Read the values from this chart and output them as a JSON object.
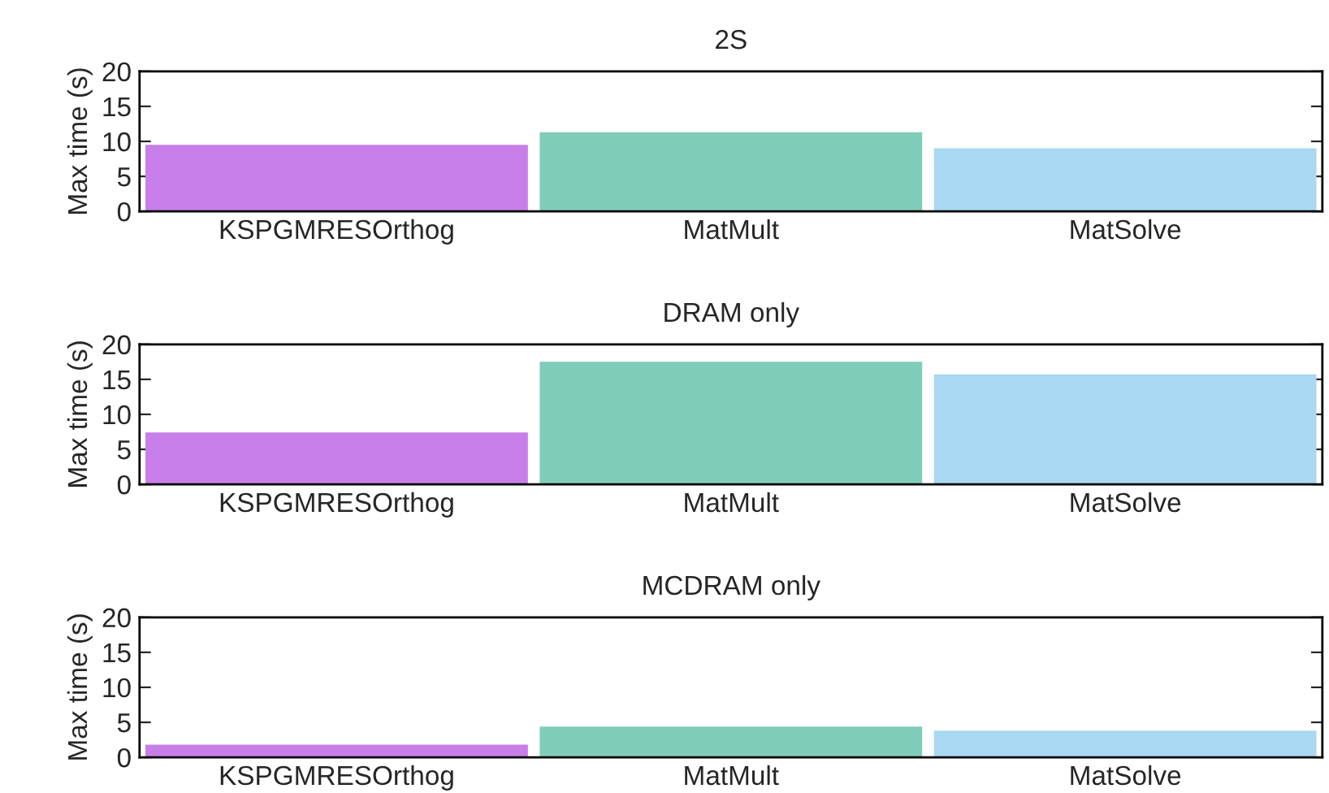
{
  "chart_data": [
    {
      "type": "bar",
      "title": "2S",
      "ylabel": "Max time (s)",
      "categories": [
        "KSPGMRESOrthog",
        "MatMult",
        "MatSolve"
      ],
      "values": [
        9.5,
        11.3,
        9.0
      ],
      "colors": [
        "#c77ee8",
        "#7fcdb9",
        "#a8d8f2"
      ],
      "ylim": [
        0,
        20
      ],
      "yticks": [
        0,
        5,
        10,
        15,
        20
      ],
      "grid": false
    },
    {
      "type": "bar",
      "title": "DRAM only",
      "ylabel": "Max time (s)",
      "categories": [
        "KSPGMRESOrthog",
        "MatMult",
        "MatSolve"
      ],
      "values": [
        7.4,
        17.5,
        15.7
      ],
      "colors": [
        "#c77ee8",
        "#7fcdb9",
        "#a8d8f2"
      ],
      "ylim": [
        0,
        20
      ],
      "yticks": [
        0,
        5,
        10,
        15,
        20
      ],
      "grid": false
    },
    {
      "type": "bar",
      "title": "MCDRAM only",
      "ylabel": "Max time (s)",
      "categories": [
        "KSPGMRESOrthog",
        "MatMult",
        "MatSolve"
      ],
      "values": [
        1.8,
        4.4,
        3.8
      ],
      "colors": [
        "#c77ee8",
        "#7fcdb9",
        "#a8d8f2"
      ],
      "ylim": [
        0,
        20
      ],
      "yticks": [
        0,
        5,
        10,
        15,
        20
      ],
      "grid": false
    }
  ]
}
